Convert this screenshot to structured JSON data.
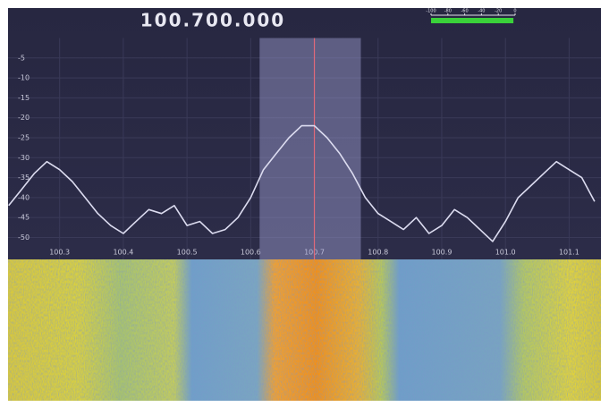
{
  "chart_data": {
    "type": "line",
    "title": "100.700.000",
    "x": [
      100.22,
      100.24,
      100.26,
      100.28,
      100.3,
      100.32,
      100.34,
      100.36,
      100.38,
      100.4,
      100.42,
      100.44,
      100.46,
      100.48,
      100.5,
      100.52,
      100.54,
      100.56,
      100.58,
      100.6,
      100.62,
      100.64,
      100.66,
      100.68,
      100.7,
      100.72,
      100.74,
      100.76,
      100.78,
      100.8,
      100.82,
      100.84,
      100.86,
      100.88,
      100.9,
      100.92,
      100.94,
      100.96,
      100.98,
      101.0,
      101.02,
      101.04,
      101.06,
      101.08,
      101.1,
      101.12,
      101.14
    ],
    "values": [
      -42,
      -38,
      -34,
      -31,
      -33,
      -36,
      -40,
      -44,
      -47,
      -49,
      -46,
      -43,
      -44,
      -42,
      -47,
      -46,
      -49,
      -48,
      -45,
      -40,
      -33,
      -29,
      -25,
      -22,
      -22,
      -25,
      -29,
      -34,
      -40,
      -44,
      -46,
      -48,
      -45,
      -49,
      -47,
      -43,
      -45,
      -48,
      -51,
      -46,
      -40,
      -37,
      -34,
      -31,
      -33,
      -35,
      -41
    ],
    "color": "#dcdcf0",
    "xlim": [
      100.219,
      101.15
    ],
    "ylim": [
      -55.5,
      0
    ],
    "xticks": [
      100.3,
      100.4,
      100.5,
      100.6,
      100.7,
      100.8,
      100.9,
      {
        "value": 101,
        "label": "101.0"
      },
      101.1
    ],
    "yticks": [
      -5,
      -10,
      -15,
      -20,
      -25,
      -30,
      -35,
      -40,
      -45,
      -50
    ],
    "grid": true,
    "selection": [
      100.614,
      100.773
    ],
    "tuned": 100.7
  },
  "meter": {
    "ticks": [
      -100,
      -80,
      -60,
      -40,
      -20,
      0
    ],
    "level": -2,
    "color": "#3ad13a"
  }
}
